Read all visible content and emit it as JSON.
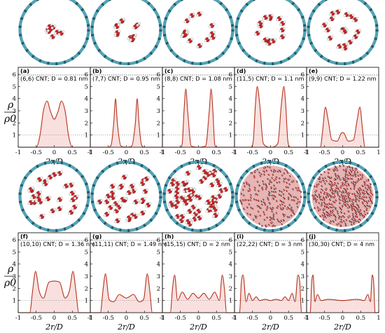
{
  "figure": {
    "ylabel_top": "ρ",
    "ylabel_bottom": "ρ0",
    "colors": {
      "curve": "#b5331f",
      "fill": "#f9e0de",
      "guide": "#9a9a9a",
      "tube": "#4fa3b5",
      "tube_dark": "#1d3e48",
      "water_o": "#c62828",
      "water_h": "#eeeeee"
    }
  },
  "chart_data": [
    {
      "type": "line",
      "label": "(a)",
      "title": "(6,6) CNT; D = 0.81 nm",
      "xlabel": "2r/D",
      "ylabel": "ρ/ρ0",
      "xlim": [
        -1,
        1
      ],
      "ylim": [
        0,
        6
      ],
      "xticks": [
        "-1",
        "-0.5",
        "0",
        "0.5",
        "1"
      ],
      "yticks": [
        "1",
        "2",
        "3",
        "4",
        "5",
        "6"
      ],
      "reference_line_y": 1,
      "grid": false,
      "series": [
        {
          "x": [
            -1,
            -0.5,
            -0.4,
            -0.3,
            -0.2,
            -0.1,
            0,
            0.1,
            0.2,
            0.3,
            0.4,
            0.5,
            1
          ],
          "y": [
            0,
            0,
            0.9,
            3.0,
            3.8,
            2.9,
            2.3,
            2.9,
            3.8,
            3.0,
            0.9,
            0,
            0
          ]
        }
      ]
    },
    {
      "type": "line",
      "label": "(b)",
      "title": "(7,7) CNT; D = 0.95 nm",
      "xlabel": "2r/D",
      "ylabel": "ρ/ρ0",
      "xlim": [
        -1,
        1
      ],
      "ylim": [
        0,
        6
      ],
      "xticks": [
        "-1",
        "-0.5",
        "0",
        "0.5",
        "1"
      ],
      "yticks": [
        "1",
        "2",
        "3",
        "4",
        "5",
        "6"
      ],
      "reference_line_y": 1,
      "grid": false,
      "series": [
        {
          "x": [
            -1,
            -0.5,
            -0.42,
            -0.35,
            -0.3,
            -0.25,
            -0.15,
            0,
            0.15,
            0.25,
            0.3,
            0.35,
            0.42,
            0.5,
            1
          ],
          "y": [
            0,
            0,
            0.2,
            2.0,
            4.0,
            2.0,
            0.1,
            0,
            0.1,
            2.0,
            4.0,
            2.0,
            0.2,
            0,
            0
          ]
        }
      ]
    },
    {
      "type": "line",
      "label": "(c)",
      "title": "(8,8) CNT; D = 1.08 nm",
      "xlabel": "2r/D",
      "ylabel": "ρ/ρ0",
      "xlim": [
        -1,
        1
      ],
      "ylim": [
        0,
        6
      ],
      "xticks": [
        "-1",
        "-0.5",
        "0",
        "0.5",
        "1"
      ],
      "yticks": [
        "1",
        "2",
        "3",
        "4",
        "5",
        "6"
      ],
      "reference_line_y": 1,
      "grid": false,
      "series": [
        {
          "x": [
            -1,
            -0.5,
            -0.45,
            -0.4,
            -0.35,
            -0.3,
            -0.2,
            0,
            0.2,
            0.3,
            0.35,
            0.4,
            0.45,
            0.5,
            1
          ],
          "y": [
            0,
            0,
            0.3,
            3.0,
            4.8,
            3.0,
            0.1,
            0,
            0.1,
            3.0,
            4.8,
            3.0,
            0.3,
            0,
            0
          ]
        }
      ]
    },
    {
      "type": "line",
      "label": "(d)",
      "title": "(11,5) CNT; D = 1.1 nm",
      "xlabel": "2r/D",
      "ylabel": "ρ/ρ0",
      "xlim": [
        -1,
        1
      ],
      "ylim": [
        0,
        6
      ],
      "xticks": [
        "-1",
        "-0.5",
        "0",
        "0.5",
        "1"
      ],
      "yticks": [
        "1",
        "2",
        "3",
        "4",
        "5",
        "6"
      ],
      "reference_line_y": 1,
      "grid": false,
      "series": [
        {
          "x": [
            -1,
            -0.55,
            -0.48,
            -0.42,
            -0.37,
            -0.3,
            -0.2,
            0,
            0.2,
            0.3,
            0.37,
            0.42,
            0.48,
            0.55,
            1
          ],
          "y": [
            0,
            0,
            0.5,
            3.5,
            5.0,
            3.5,
            0.3,
            0,
            0.3,
            3.5,
            5.0,
            3.5,
            0.5,
            0,
            0
          ]
        }
      ]
    },
    {
      "type": "line",
      "label": "(e)",
      "title": "(9,9) CNT; D = 1.22 nm",
      "xlabel": "2r/D",
      "ylabel": "ρ/ρ0",
      "xlim": [
        -1,
        1
      ],
      "ylim": [
        0,
        6
      ],
      "xticks": [
        "-1",
        "-0.5",
        "0",
        "0.5",
        "1"
      ],
      "yticks": [
        "1",
        "2",
        "3",
        "4",
        "5",
        "6"
      ],
      "reference_line_y": 1,
      "grid": false,
      "series": [
        {
          "x": [
            -1,
            -0.62,
            -0.55,
            -0.48,
            -0.4,
            -0.3,
            -0.15,
            -0.05,
            0,
            0.05,
            0.15,
            0.3,
            0.4,
            0.48,
            0.55,
            0.62,
            1
          ],
          "y": [
            0,
            0,
            1.5,
            3.3,
            2.2,
            0.6,
            0.5,
            1.1,
            1.2,
            1.1,
            0.5,
            0.6,
            2.2,
            3.3,
            1.5,
            0,
            0
          ]
        }
      ]
    },
    {
      "type": "line",
      "label": "(f)",
      "title": "(10,10) CNT; D = 1.36 nm",
      "xlabel": "2r/D",
      "ylabel": "ρ/ρ0",
      "xlim": [
        -1,
        1
      ],
      "ylim": [
        0,
        6
      ],
      "xticks": [
        "-1",
        "-0.5",
        "0",
        "0.5",
        "1"
      ],
      "yticks": [
        "1",
        "2",
        "3",
        "4",
        "5",
        "6"
      ],
      "reference_line_y": 1,
      "grid": false,
      "series": [
        {
          "x": [
            -1,
            -0.68,
            -0.6,
            -0.52,
            -0.42,
            -0.3,
            -0.15,
            0,
            0.15,
            0.3,
            0.42,
            0.52,
            0.6,
            0.68,
            1
          ],
          "y": [
            0,
            0,
            1.8,
            3.4,
            1.8,
            1.2,
            2.5,
            2.6,
            2.5,
            1.2,
            1.8,
            3.4,
            1.8,
            0,
            0
          ]
        }
      ]
    },
    {
      "type": "line",
      "label": "(g)",
      "title": "(11,11) CNT; D = 1.49 nm",
      "xlabel": "2r/D",
      "ylabel": "ρ/ρ0",
      "xlim": [
        -1,
        1
      ],
      "ylim": [
        0,
        6
      ],
      "xticks": [
        "-1",
        "-0.5",
        "0",
        "0.5",
        "1"
      ],
      "yticks": [
        "1",
        "2",
        "3",
        "4",
        "5",
        "6"
      ],
      "reference_line_y": 1,
      "grid": false,
      "series": [
        {
          "x": [
            -1,
            -0.72,
            -0.65,
            -0.58,
            -0.48,
            -0.35,
            -0.2,
            0,
            0.2,
            0.35,
            0.48,
            0.58,
            0.65,
            0.72,
            1
          ],
          "y": [
            0,
            0,
            1.8,
            3.2,
            1.1,
            0.9,
            1.5,
            1.2,
            1.5,
            0.9,
            1.1,
            3.2,
            1.8,
            0,
            0
          ]
        }
      ]
    },
    {
      "type": "line",
      "label": "(h)",
      "title": "(15,15) CNT; D = 2 nm",
      "xlabel": "2r/D",
      "ylabel": "ρ/ρ0",
      "xlim": [
        -1,
        1
      ],
      "ylim": [
        0,
        6
      ],
      "xticks": [
        "-1",
        "-0.5",
        "0",
        "0.5",
        "1"
      ],
      "yticks": [
        "1",
        "2",
        "3",
        "4",
        "5",
        "6"
      ],
      "reference_line_y": 1,
      "grid": false,
      "series": [
        {
          "x": [
            -1,
            -0.78,
            -0.72,
            -0.66,
            -0.58,
            -0.45,
            -0.3,
            -0.15,
            0,
            0.15,
            0.3,
            0.45,
            0.58,
            0.66,
            0.72,
            0.78,
            1
          ],
          "y": [
            0,
            0,
            2.0,
            3.1,
            1.0,
            1.7,
            1.1,
            1.6,
            1.2,
            1.6,
            1.1,
            1.7,
            1.0,
            3.1,
            2.0,
            0,
            0
          ]
        }
      ]
    },
    {
      "type": "line",
      "label": "(i)",
      "title": "(22,22) CNT; D = 3 nm",
      "xlabel": "2r/D",
      "ylabel": "ρ/ρ0",
      "xlim": [
        -1,
        1
      ],
      "ylim": [
        0,
        6
      ],
      "xticks": [
        "-1",
        "-0.5",
        "0",
        "0.5",
        "1"
      ],
      "yticks": [
        "1",
        "2",
        "3",
        "4",
        "5",
        "6"
      ],
      "reference_line_y": 1,
      "grid": false,
      "series": [
        {
          "x": [
            -1,
            -0.86,
            -0.81,
            -0.76,
            -0.68,
            -0.6,
            -0.5,
            -0.4,
            -0.3,
            -0.15,
            0,
            0.15,
            0.3,
            0.4,
            0.5,
            0.6,
            0.68,
            0.76,
            0.81,
            0.86,
            1
          ],
          "y": [
            0,
            0,
            2.5,
            3.1,
            0.9,
            1.6,
            1.0,
            1.3,
            1.0,
            1.1,
            1.0,
            1.1,
            1.0,
            1.3,
            1.0,
            1.6,
            0.9,
            3.1,
            2.5,
            0,
            0
          ]
        }
      ]
    },
    {
      "type": "line",
      "label": "(j)",
      "title": "(30,30) CNT; D = 4 nm",
      "xlabel": "2r/D",
      "ylabel": "ρ/ρ0",
      "xlim": [
        -1,
        1
      ],
      "ylim": [
        0,
        6
      ],
      "xticks": [
        "-1",
        "-0.5",
        "0",
        "0.5",
        "1"
      ],
      "yticks": [
        "1",
        "2",
        "3",
        "4",
        "5",
        "6"
      ],
      "reference_line_y": 1,
      "grid": false,
      "series": [
        {
          "x": [
            -1,
            -0.9,
            -0.86,
            -0.82,
            -0.77,
            -0.7,
            -0.6,
            -0.4,
            0,
            0.4,
            0.6,
            0.7,
            0.77,
            0.82,
            0.86,
            0.9,
            1
          ],
          "y": [
            0,
            0,
            2.5,
            3.1,
            0.9,
            1.5,
            1.0,
            1.1,
            1.0,
            1.1,
            1.0,
            1.5,
            0.9,
            3.1,
            2.5,
            0,
            0
          ]
        }
      ]
    }
  ]
}
